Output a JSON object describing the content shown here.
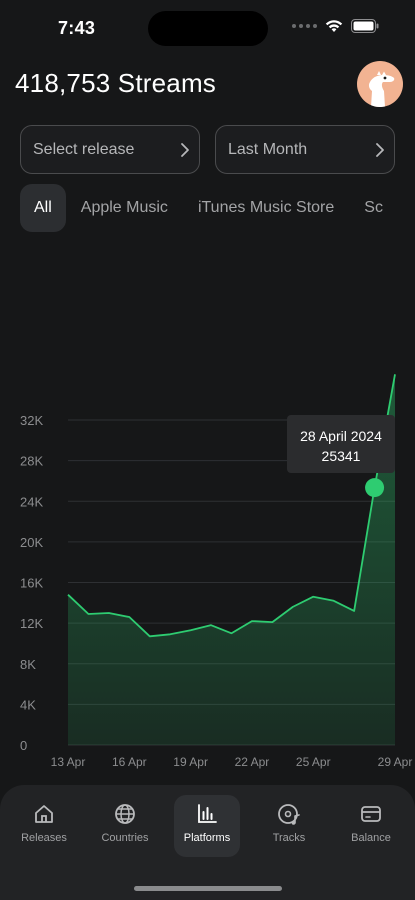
{
  "status": {
    "time": "7:43"
  },
  "header": {
    "title": "418,753 Streams"
  },
  "filters": {
    "release": "Select release",
    "period": "Last Month"
  },
  "platform_tabs": [
    {
      "label": "All",
      "active": true
    },
    {
      "label": "Apple Music",
      "active": false
    },
    {
      "label": "iTunes Music Store",
      "active": false
    },
    {
      "label": "Sc",
      "active": false
    }
  ],
  "chart_data": {
    "type": "area",
    "color": "#2ecc71",
    "x": [
      "13 Apr",
      "14 Apr",
      "15 Apr",
      "16 Apr",
      "17 Apr",
      "18 Apr",
      "19 Apr",
      "20 Apr",
      "21 Apr",
      "22 Apr",
      "23 Apr",
      "24 Apr",
      "25 Apr",
      "26 Apr",
      "27 Apr",
      "28 Apr",
      "29 Apr"
    ],
    "values": [
      14800,
      12900,
      13000,
      12600,
      10700,
      10900,
      11300,
      11800,
      11000,
      12200,
      12100,
      13600,
      14600,
      14200,
      13200,
      25341,
      36500
    ],
    "xtick_labels": [
      "13 Apr",
      "16 Apr",
      "19 Apr",
      "22 Apr",
      "25 Apr",
      "29 Apr"
    ],
    "xtick_index": [
      0,
      3,
      6,
      9,
      12,
      16
    ],
    "ytick_labels": [
      "0",
      "4K",
      "8K",
      "12K",
      "16K",
      "20K",
      "24K",
      "28K",
      "32K"
    ],
    "ytick_values": [
      0,
      4000,
      8000,
      12000,
      16000,
      20000,
      24000,
      28000,
      32000
    ],
    "ylim": [
      0,
      32000
    ],
    "grid": true,
    "highlight": {
      "index": 15,
      "date": "28 April 2024",
      "value": "25341"
    }
  },
  "tabbar": [
    {
      "label": "Releases",
      "icon": "house-icon",
      "active": false
    },
    {
      "label": "Countries",
      "icon": "globe-icon",
      "active": false
    },
    {
      "label": "Platforms",
      "icon": "bar-chart-icon",
      "active": true
    },
    {
      "label": "Tracks",
      "icon": "music-disc-icon",
      "active": false
    },
    {
      "label": "Balance",
      "icon": "wallet-icon",
      "active": false
    }
  ]
}
